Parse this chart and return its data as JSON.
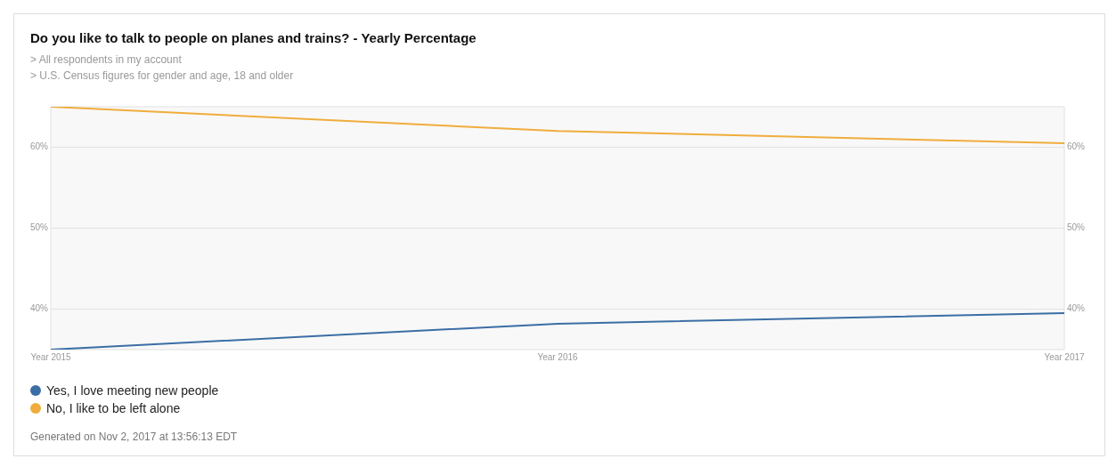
{
  "chart_data": {
    "type": "line",
    "title": "Do you like to talk to people on planes and trains? - Yearly Percentage",
    "subtitle": "> All respondents in my account\n> U.S. Census figures for gender and age, 18 and older",
    "categories": [
      "Year 2015",
      "Year 2016",
      "Year 2017"
    ],
    "series": [
      {
        "name": "Yes, I love meeting new people",
        "color": "#3b6ea5",
        "values": [
          35,
          38.2,
          39.5
        ]
      },
      {
        "name": "No, I like to be left alone",
        "color": "#f0ad3c",
        "values": [
          65,
          62,
          60.5
        ]
      }
    ],
    "ylim": [
      35,
      65
    ],
    "yticks": [
      {
        "value": 40,
        "label": "40%"
      },
      {
        "value": 50,
        "label": "50%"
      },
      {
        "value": 60,
        "label": "60%"
      }
    ],
    "y2lim": [
      35,
      65
    ],
    "y2ticks": [
      {
        "value": 40,
        "label": "40%"
      },
      {
        "value": 50,
        "label": "50%"
      },
      {
        "value": 60,
        "label": "60%"
      }
    ],
    "grid": "y",
    "legend": "bottom left",
    "marker": "none",
    "line_style": "solid",
    "annotations": [
      "Generated on Nov 2, 2017 at 13:56:13 EDT"
    ]
  }
}
